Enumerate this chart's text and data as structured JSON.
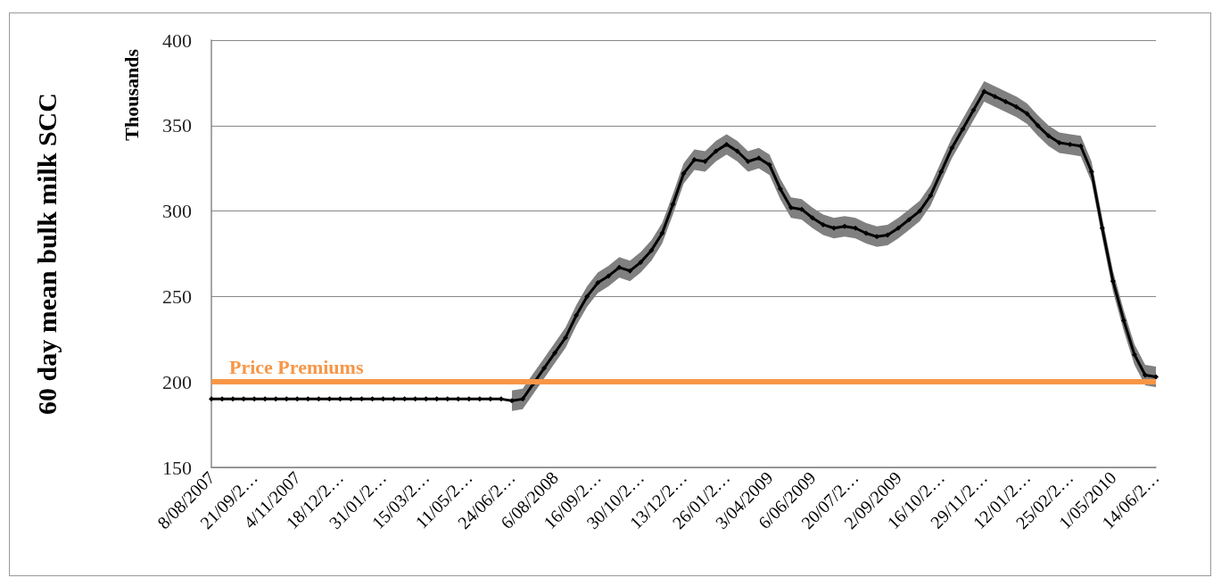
{
  "chart_data": {
    "type": "line",
    "ylabel": "60 day mean bulk milk SCC",
    "annotations": [
      "Thousands"
    ],
    "categories": [
      "8/08/2007",
      null,
      null,
      null,
      "21/09/2…",
      null,
      null,
      null,
      "4/11/2007",
      null,
      null,
      null,
      "18/12/2…",
      null,
      null,
      null,
      "31/01/2…",
      null,
      null,
      null,
      "15/03/2…",
      null,
      null,
      null,
      "11/05/2…",
      null,
      null,
      null,
      "24/06/2…",
      null,
      null,
      null,
      "6/08/2008",
      null,
      null,
      null,
      "16/09/2…",
      null,
      null,
      null,
      "30/10/2…",
      null,
      null,
      null,
      "13/12/2…",
      null,
      null,
      null,
      "26/01/2…",
      null,
      null,
      null,
      "3/04/2009",
      null,
      null,
      null,
      "6/06/2009",
      null,
      null,
      null,
      "20/07/2…",
      null,
      null,
      null,
      "2/09/2009",
      null,
      null,
      null,
      "16/10/2…",
      null,
      null,
      null,
      "29/11/2…",
      null,
      null,
      null,
      "12/01/2…",
      null,
      null,
      null,
      "25/02/2…",
      null,
      null,
      null,
      "1/05/2010",
      null,
      null,
      null,
      "14/06/2…"
    ],
    "series": [
      {
        "color": "#000000",
        "values": [
          190,
          190,
          190,
          190,
          190,
          190,
          190,
          190,
          190,
          190,
          190,
          190,
          190,
          190,
          190,
          190,
          190,
          190,
          190,
          190,
          190,
          190,
          190,
          190,
          190,
          190,
          190,
          190,
          189,
          190,
          199,
          208,
          217,
          226,
          239,
          250,
          258,
          262,
          267,
          265,
          270,
          277,
          287,
          304,
          322,
          330,
          329,
          335,
          339,
          335,
          329,
          331,
          327,
          313,
          302,
          301,
          296,
          292,
          290,
          291,
          290,
          287,
          285,
          286,
          290,
          295,
          300,
          309,
          323,
          337,
          348,
          359,
          370,
          367,
          364,
          361,
          357,
          350,
          344,
          340,
          339,
          338,
          323,
          290,
          259,
          236,
          216,
          204,
          203
        ],
        "lower": [
          null,
          null,
          null,
          null,
          null,
          null,
          null,
          null,
          null,
          null,
          null,
          null,
          null,
          null,
          null,
          null,
          null,
          null,
          null,
          null,
          null,
          null,
          null,
          null,
          null,
          null,
          null,
          null,
          183,
          184,
          193,
          202,
          211,
          220,
          233,
          244,
          252,
          256,
          261,
          259,
          264,
          271,
          281,
          298,
          316,
          324,
          323,
          329,
          333,
          329,
          323,
          325,
          321,
          307,
          296,
          295,
          290,
          286,
          284,
          285,
          284,
          281,
          279,
          280,
          284,
          289,
          294,
          303,
          317,
          331,
          342,
          353,
          364,
          361,
          358,
          355,
          351,
          344,
          338,
          334,
          333,
          332,
          317,
          284,
          253,
          230,
          210,
          198,
          197
        ],
        "upper": [
          null,
          null,
          null,
          null,
          null,
          null,
          null,
          null,
          null,
          null,
          null,
          null,
          null,
          null,
          null,
          null,
          null,
          null,
          null,
          null,
          null,
          null,
          null,
          null,
          null,
          null,
          null,
          null,
          195,
          196,
          205,
          214,
          223,
          232,
          245,
          256,
          264,
          268,
          273,
          271,
          276,
          283,
          293,
          310,
          328,
          336,
          335,
          341,
          345,
          341,
          335,
          337,
          333,
          319,
          308,
          307,
          302,
          298,
          296,
          297,
          296,
          293,
          291,
          292,
          296,
          301,
          306,
          315,
          329,
          343,
          354,
          365,
          376,
          373,
          370,
          367,
          363,
          356,
          350,
          346,
          345,
          344,
          329,
          296,
          265,
          242,
          222,
          210,
          209
        ]
      }
    ],
    "ylim": [
      150,
      400
    ],
    "yticks": [
      150,
      200,
      250,
      300,
      350,
      400
    ],
    "grid": "y",
    "marker": "diamond",
    "line_style": "solid",
    "ref_lines": [
      {
        "axis": "y",
        "value": 200,
        "label": "Price Premiums",
        "color": "#f79646"
      }
    ]
  }
}
